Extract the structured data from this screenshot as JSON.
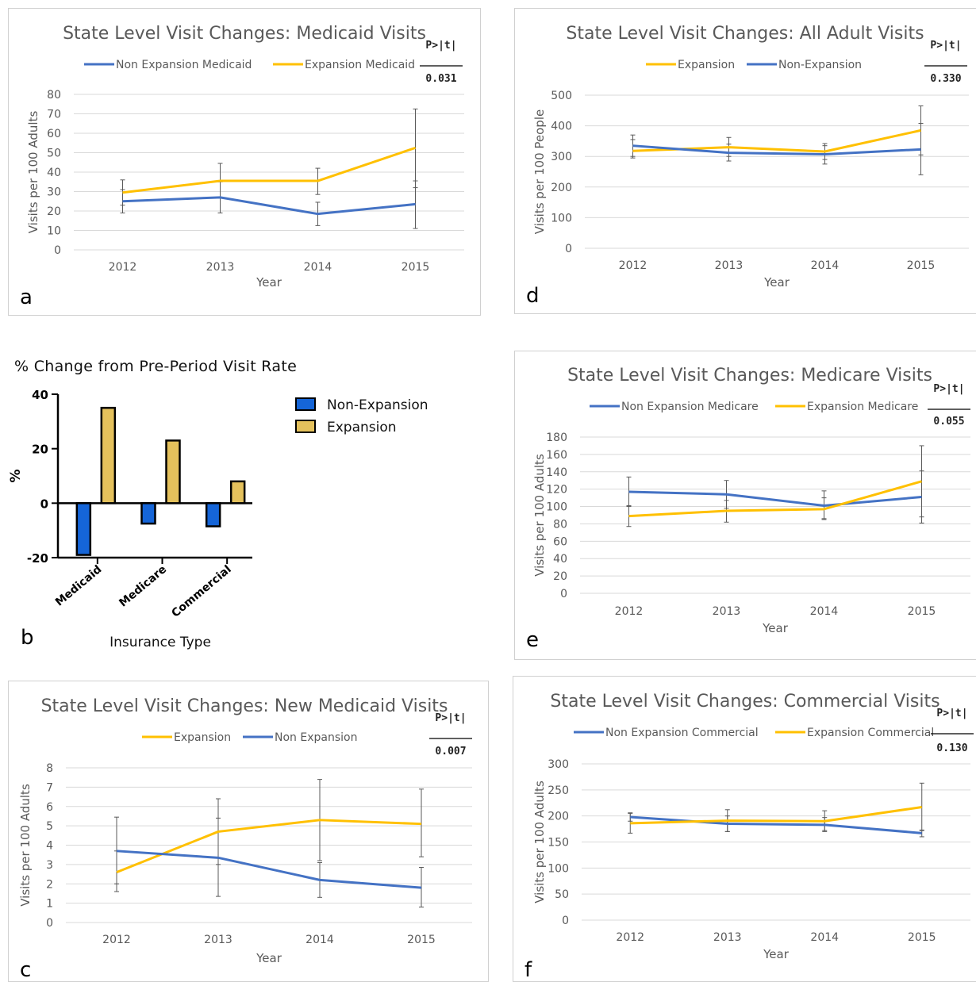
{
  "colors": {
    "expansion": "#FFC000",
    "non_expansion": "#4472C4",
    "bar_non_expansion": "#1565D8",
    "bar_expansion": "#E4C15C",
    "error_bar": "#595959"
  },
  "chart_data": [
    {
      "id": "a",
      "panel_label": "a",
      "type": "line",
      "title": "State Level Visit Changes: Medicaid Visits",
      "xlabel": "Year",
      "ylabel": "Visits per 100 Adults",
      "x": [
        "2012",
        "2013",
        "2014",
        "2015"
      ],
      "ylim": [
        0,
        80
      ],
      "yticks": [
        0,
        10,
        20,
        30,
        40,
        50,
        60,
        70,
        80
      ],
      "grid": true,
      "p_label": "P>|t|",
      "p_value": "0.031",
      "series": [
        {
          "name": "Non Expansion  Medicaid",
          "group": "non_expansion",
          "values": [
            25,
            27,
            18.5,
            23.5
          ],
          "err_low": [
            19,
            19,
            12.5,
            11
          ],
          "err_high": [
            31,
            35,
            24.5,
            35.5
          ]
        },
        {
          "name": "Expansion Medicaid",
          "group": "expansion",
          "values": [
            29.5,
            35.5,
            35.5,
            52.5
          ],
          "err_low": [
            23,
            27,
            28.5,
            32
          ],
          "err_high": [
            36,
            44.5,
            42,
            72.5
          ]
        }
      ]
    },
    {
      "id": "d",
      "panel_label": "d",
      "type": "line",
      "title": "State Level Visit Changes: All Adult Visits",
      "xlabel": "Year",
      "ylabel": "Visits per 100 People",
      "x": [
        "2012",
        "2013",
        "2014",
        "2015"
      ],
      "ylim": [
        0,
        500
      ],
      "yticks": [
        0,
        100,
        200,
        300,
        400,
        500
      ],
      "grid": true,
      "p_label": "P>|t|",
      "p_value": "0.330",
      "series": [
        {
          "name": "Expansion",
          "group": "expansion",
          "values": [
            318,
            330,
            316,
            385
          ],
          "err_low": [
            295,
            300,
            290,
            305
          ],
          "err_high": [
            355,
            362,
            342,
            465
          ]
        },
        {
          "name": "Non-Expansion",
          "group": "non_expansion",
          "values": [
            335,
            312,
            307,
            323
          ],
          "err_low": [
            300,
            285,
            275,
            240
          ],
          "err_high": [
            370,
            340,
            335,
            408
          ]
        }
      ]
    },
    {
      "id": "b",
      "panel_label": "b",
      "type": "bar",
      "title": "% Change from Pre-Period Visit Rate",
      "xlabel": "Insurance Type",
      "ylabel": "%",
      "categories": [
        "Medicaid",
        "Medicare",
        "Commercial"
      ],
      "ylim": [
        -20,
        40
      ],
      "yticks": [
        -20,
        0,
        20,
        40
      ],
      "grid": false,
      "series": [
        {
          "name": "Non-Expansion",
          "group": "bar_non_expansion",
          "values": [
            -19,
            -7.5,
            -8.5
          ]
        },
        {
          "name": "Expansion",
          "group": "bar_expansion",
          "values": [
            35,
            23,
            8
          ]
        }
      ]
    },
    {
      "id": "e",
      "panel_label": "e",
      "type": "line",
      "title": "State Level Visit Changes: Medicare Visits",
      "xlabel": "Year",
      "ylabel": "Visits per 100 Adults",
      "x": [
        "2012",
        "2013",
        "2014",
        "2015"
      ],
      "ylim": [
        0,
        180
      ],
      "yticks": [
        0,
        20,
        40,
        60,
        80,
        100,
        120,
        140,
        160,
        180
      ],
      "grid": true,
      "p_label": "P>|t|",
      "p_value": "0.055",
      "series": [
        {
          "name": "Non Expansion Medicare",
          "group": "non_expansion",
          "values": [
            117,
            114,
            101,
            111
          ],
          "err_low": [
            100,
            98,
            85,
            81
          ],
          "err_high": [
            134,
            130,
            118,
            141
          ]
        },
        {
          "name": "Expansion Medicare",
          "group": "expansion",
          "values": [
            89,
            95,
            97,
            129
          ],
          "err_low": [
            77,
            82,
            86,
            88
          ],
          "err_high": [
            101,
            107,
            110,
            170
          ]
        }
      ]
    },
    {
      "id": "c",
      "panel_label": "c",
      "type": "line",
      "title": "State Level Visit Changes: New Medicaid Visits",
      "xlabel": "Year",
      "ylabel": "Visits per 100 Adults",
      "x": [
        "2012",
        "2013",
        "2014",
        "2015"
      ],
      "ylim": [
        0,
        8
      ],
      "yticks": [
        0,
        1,
        2,
        3,
        4,
        5,
        6,
        7,
        8
      ],
      "grid": true,
      "p_label": "P>|t|",
      "p_value": "0.007",
      "series": [
        {
          "name": "Expansion",
          "group": "expansion",
          "values": [
            2.6,
            4.7,
            5.3,
            5.1
          ],
          "err_low": [
            1.6,
            3.0,
            3.2,
            3.4
          ],
          "err_high": [
            3.7,
            6.4,
            7.4,
            6.9
          ]
        },
        {
          "name": "Non Expansion",
          "group": "non_expansion",
          "values": [
            3.7,
            3.35,
            2.2,
            1.8
          ],
          "err_low": [
            2.0,
            1.35,
            1.3,
            0.8
          ],
          "err_high": [
            5.45,
            5.4,
            3.1,
            2.85
          ]
        }
      ]
    },
    {
      "id": "f",
      "panel_label": "f",
      "type": "line",
      "title": "State Level Visit Changes: Commercial Visits",
      "xlabel": "Year",
      "ylabel": "Visits per 100 Adults",
      "x": [
        "2012",
        "2013",
        "2014",
        "2015"
      ],
      "ylim": [
        0,
        300
      ],
      "yticks": [
        0,
        50,
        100,
        150,
        200,
        250,
        300
      ],
      "grid": true,
      "p_label": "P>|t|",
      "p_value": "0.130",
      "series": [
        {
          "name": "Non Expansion Commercial",
          "group": "non_expansion",
          "values": [
            198,
            185,
            183,
            167
          ],
          "err_low": [
            190,
            170,
            170,
            160
          ],
          "err_high": [
            206,
            200,
            197,
            173
          ]
        },
        {
          "name": "Expansion Commercial",
          "group": "expansion",
          "values": [
            186,
            191,
            190,
            217
          ],
          "err_low": [
            167,
            170,
            172,
            172
          ],
          "err_high": [
            205,
            212,
            210,
            263
          ]
        }
      ]
    }
  ]
}
